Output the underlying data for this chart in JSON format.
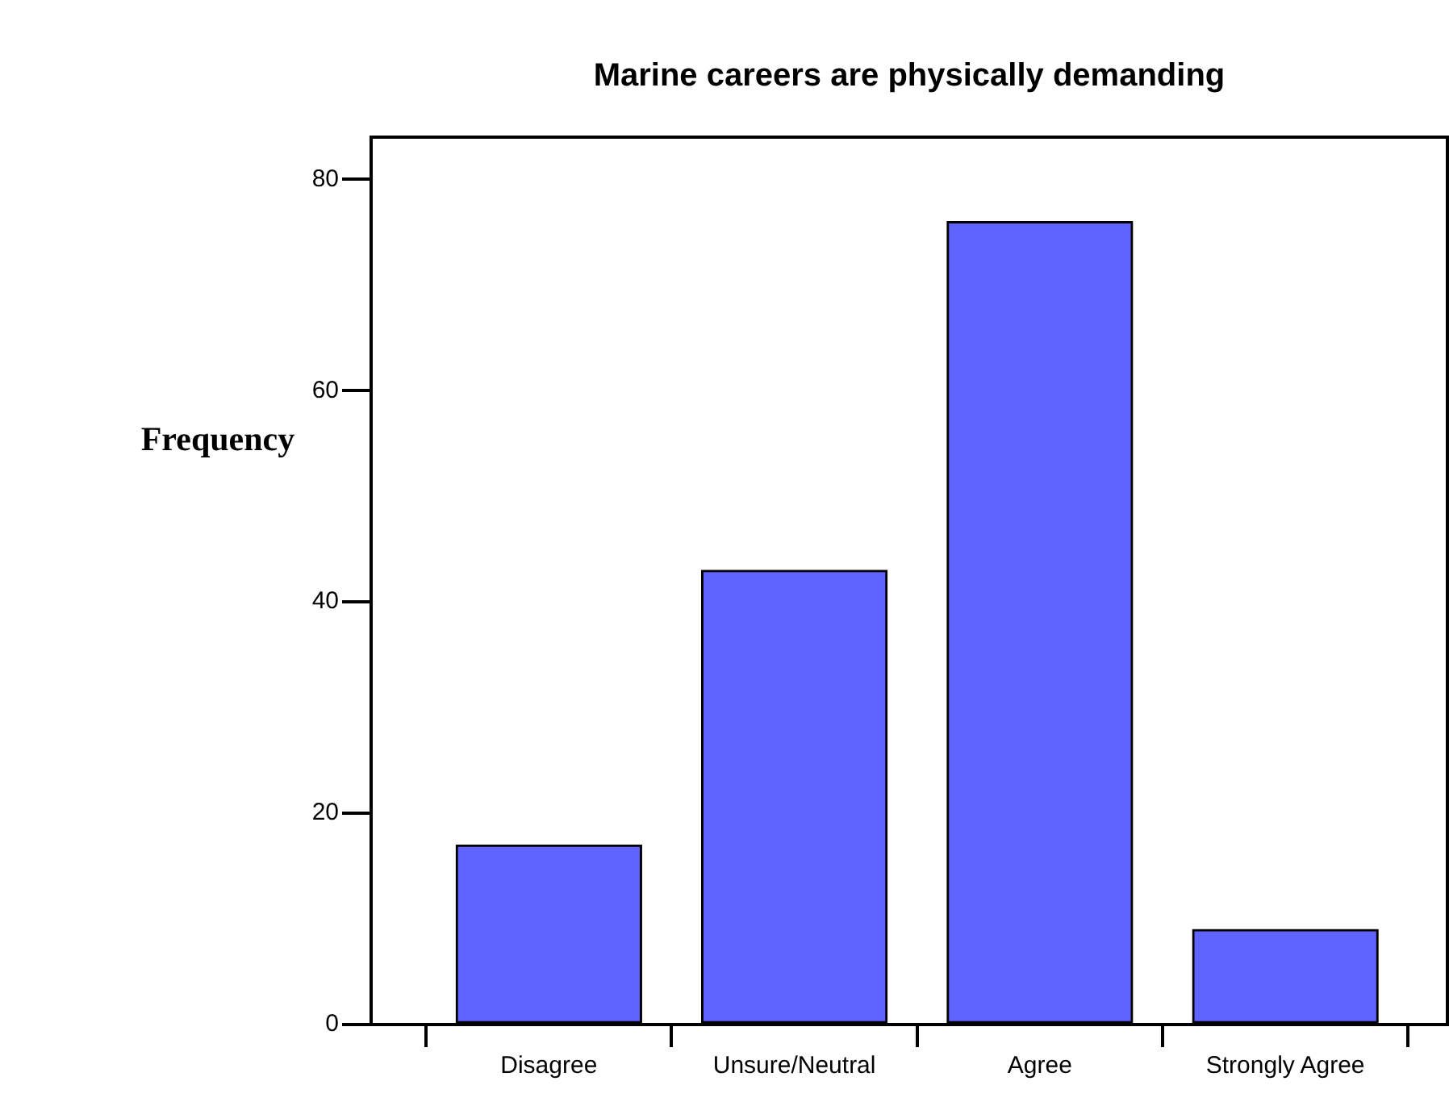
{
  "chart_data": {
    "type": "bar",
    "title": "Marine careers are physically demanding",
    "ylabel": "Frequency",
    "categories": [
      "Disagree",
      "Unsure/Neutral",
      "Agree",
      "Strongly Agree"
    ],
    "values": [
      17,
      43,
      76,
      9
    ],
    "color": "#5f63ff",
    "ylim": [
      0,
      84
    ],
    "yticks": [
      0,
      20,
      40,
      60,
      80
    ],
    "grid": false,
    "legend": false
  }
}
